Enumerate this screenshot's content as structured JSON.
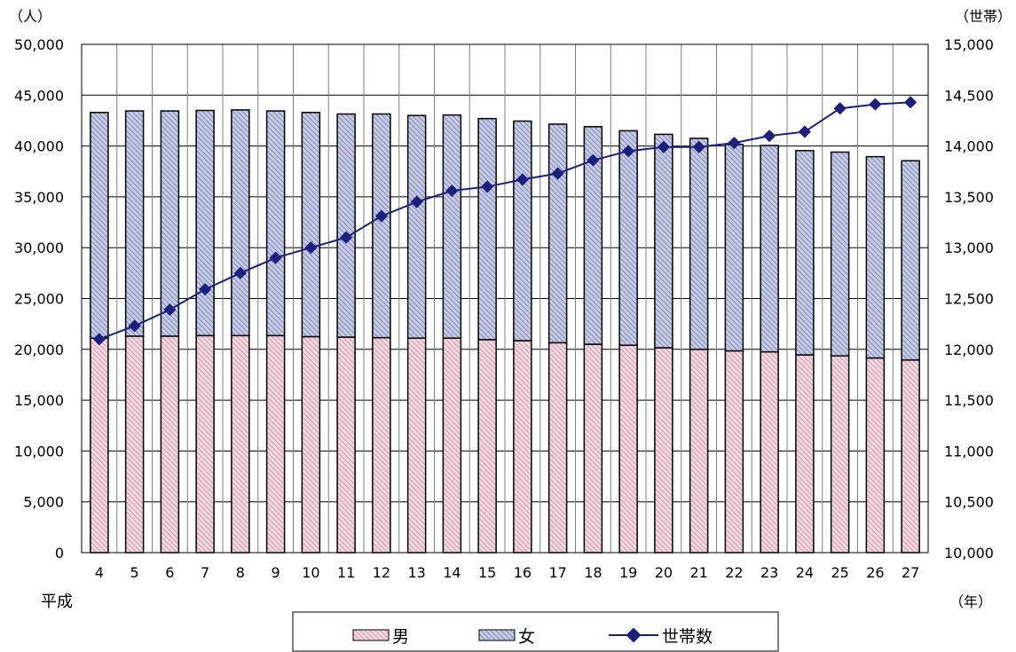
{
  "chart_data": {
    "type": "bar",
    "stacked": true,
    "x_prefix_label": "平成",
    "x_unit_label": "（年）",
    "left_unit_label": "（人）",
    "right_unit_label": "（世帯）",
    "categories": [
      "4",
      "5",
      "6",
      "7",
      "8",
      "9",
      "10",
      "11",
      "12",
      "13",
      "14",
      "15",
      "16",
      "17",
      "18",
      "19",
      "20",
      "21",
      "22",
      "23",
      "24",
      "25",
      "26",
      "27"
    ],
    "left_axis": {
      "min": 0,
      "max": 50000,
      "step": 5000,
      "ticks": [
        "0",
        "5,000",
        "10,000",
        "15,000",
        "20,000",
        "25,000",
        "30,000",
        "35,000",
        "40,000",
        "45,000",
        "50,000"
      ]
    },
    "right_axis": {
      "min": 10000,
      "max": 15000,
      "step": 500,
      "ticks": [
        "10,000",
        "10,500",
        "11,000",
        "11,500",
        "12,000",
        "12,500",
        "13,000",
        "13,500",
        "14,000",
        "14,500",
        "15,000"
      ]
    },
    "series": [
      {
        "name": "男",
        "kind": "bar",
        "axis": "left",
        "pattern": "pink-hatch",
        "values": [
          21100,
          21300,
          21300,
          21350,
          21350,
          21350,
          21250,
          21200,
          21150,
          21100,
          21100,
          20950,
          20850,
          20650,
          20500,
          20400,
          20150,
          20000,
          19850,
          19750,
          19450,
          19350,
          19150,
          18950
        ]
      },
      {
        "name": "女",
        "kind": "bar",
        "axis": "left",
        "pattern": "blue-hatch",
        "values": [
          22200,
          22150,
          22150,
          22150,
          22200,
          22100,
          22050,
          21950,
          22000,
          21900,
          21950,
          21750,
          21600,
          21500,
          21400,
          21100,
          21000,
          20750,
          20300,
          20300,
          20100,
          20050,
          19800,
          19600
        ]
      },
      {
        "name": "世帯数",
        "kind": "line",
        "axis": "right",
        "marker": "diamond",
        "values": [
          12100,
          12230,
          12390,
          12590,
          12750,
          12900,
          13000,
          13100,
          13310,
          13450,
          13560,
          13600,
          13670,
          13730,
          13860,
          13950,
          13990,
          13990,
          14030,
          14100,
          14140,
          14370,
          14410,
          14430
        ]
      }
    ],
    "grid": true,
    "legend_position": "bottom"
  },
  "colors": {
    "male_fill": "#f2d5df",
    "male_hatch": "#c9a0b0",
    "female_fill": "#c6cce6",
    "female_hatch": "#7f88b3",
    "line": "#1a1f80"
  }
}
